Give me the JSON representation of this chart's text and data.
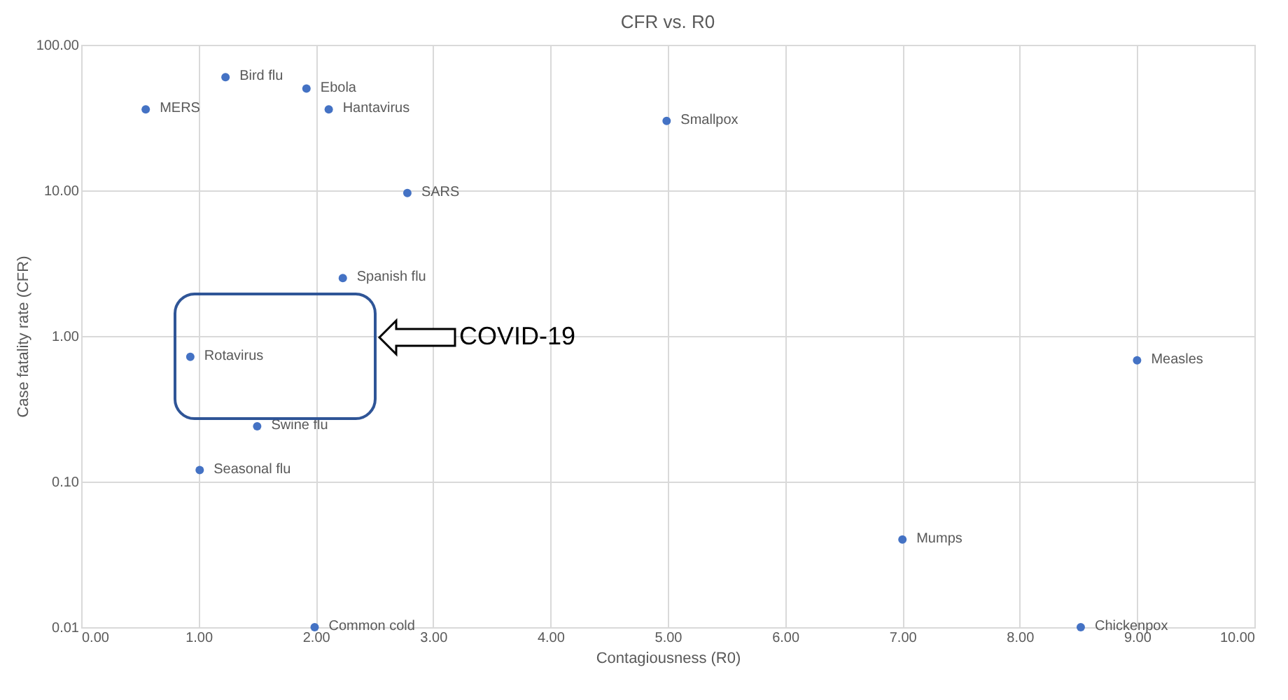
{
  "chart_data": {
    "type": "scatter",
    "title": "CFR vs. R0",
    "xlabel": "Contagiousness (R0)",
    "ylabel": "Case fatality rate (CFR)",
    "x": [
      0.55,
      1.23,
      1.92,
      2.11,
      4.99,
      2.78,
      2.23,
      0.93,
      1.5,
      1.01,
      1.99,
      9.0,
      7.0,
      8.52
    ],
    "series": [
      {
        "color": "#4472c4",
        "values": [
          36,
          60,
          50,
          36,
          30,
          9.6,
          2.5,
          0.72,
          0.24,
          0.12,
          0.01,
          0.68,
          0.04,
          0.01
        ]
      }
    ],
    "annotations": [
      {
        "text": "MERS",
        "x": 0.55,
        "y": 36
      },
      {
        "text": "Bird flu",
        "x": 1.23,
        "y": 60
      },
      {
        "text": "Ebola",
        "x": 1.92,
        "y": 50
      },
      {
        "text": "Hantavirus",
        "x": 2.11,
        "y": 36
      },
      {
        "text": "Smallpox",
        "x": 4.99,
        "y": 30
      },
      {
        "text": "SARS",
        "x": 2.78,
        "y": 9.6
      },
      {
        "text": "Spanish flu",
        "x": 2.23,
        "y": 2.5
      },
      {
        "text": "Rotavirus",
        "x": 0.93,
        "y": 0.72
      },
      {
        "text": "Swine flu",
        "x": 1.5,
        "y": 0.24
      },
      {
        "text": "Seasonal flu",
        "x": 1.01,
        "y": 0.12
      },
      {
        "text": "Common cold",
        "x": 1.99,
        "y": 0.01
      },
      {
        "text": "Measles",
        "x": 9.0,
        "y": 0.68
      },
      {
        "text": "Mumps",
        "x": 7.0,
        "y": 0.04
      },
      {
        "text": "Chickenpox",
        "x": 8.52,
        "y": 0.01
      },
      "COVID-19"
    ],
    "xlim": [
      0,
      10
    ],
    "xticks": [
      {
        "value": 0,
        "label": "0.00"
      },
      {
        "value": 1,
        "label": "1.00"
      },
      {
        "value": 2,
        "label": "2.00"
      },
      {
        "value": 3,
        "label": "3.00"
      },
      {
        "value": 4,
        "label": "4.00"
      },
      {
        "value": 5,
        "label": "5.00"
      },
      {
        "value": 6,
        "label": "6.00"
      },
      {
        "value": 7,
        "label": "7.00"
      },
      {
        "value": 8,
        "label": "8.00"
      },
      {
        "value": 9,
        "label": "9.00"
      },
      {
        "value": 10,
        "label": "10.00"
      }
    ],
    "ylim": [
      0.01,
      100
    ],
    "yticks": [
      0.01,
      {
        "value": 0.1,
        "label": "0.10"
      },
      {
        "value": 1,
        "label": "1.00"
      },
      {
        "value": 10,
        "label": "10.00"
      },
      {
        "value": 100,
        "label": "100.00"
      }
    ],
    "log": "y",
    "grid": true,
    "marker": "circle"
  }
}
